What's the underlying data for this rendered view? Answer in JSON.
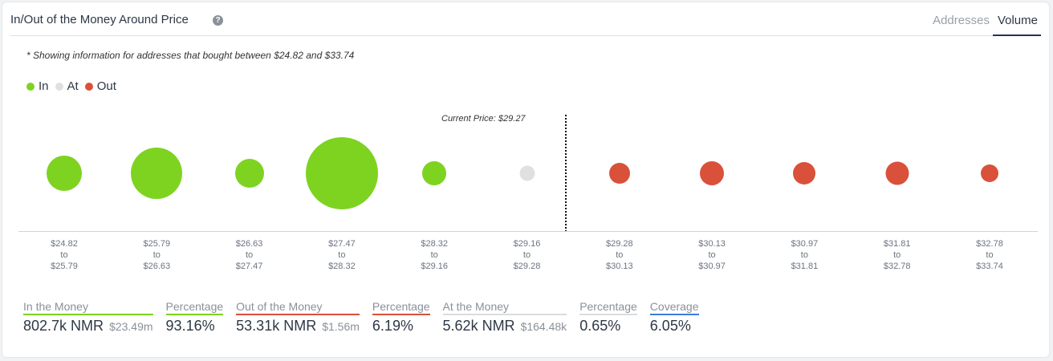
{
  "header": {
    "title": "In/Out of the Money Around Price",
    "help_icon": "question-circle-icon",
    "tabs": [
      {
        "label": "Addresses",
        "active": false
      },
      {
        "label": "Volume",
        "active": true
      }
    ]
  },
  "note": "* Showing information for addresses that bought between $24.82 and $33.74",
  "legend": [
    {
      "label": "In",
      "color": "#7ed321"
    },
    {
      "label": "At",
      "color": "#e0e0e0"
    },
    {
      "label": "Out",
      "color": "#d9513a"
    }
  ],
  "current_price_label": "Current Price: $29.27",
  "colors": {
    "in": "#7ed321",
    "at": "#e0e0e0",
    "out": "#d9513a",
    "coverage": "#3b7ddd",
    "tab_active": "#1f3362"
  },
  "chart_data": {
    "type": "bubble",
    "title": "In/Out of the Money Around Price",
    "current_price": 29.27,
    "categories": [
      {
        "from": "$24.82",
        "to": "$25.79",
        "status": "In",
        "size": 44
      },
      {
        "from": "$25.79",
        "to": "$26.63",
        "status": "In",
        "size": 64
      },
      {
        "from": "$26.63",
        "to": "$27.47",
        "status": "In",
        "size": 36
      },
      {
        "from": "$27.47",
        "to": "$28.32",
        "status": "In",
        "size": 90
      },
      {
        "from": "$28.32",
        "to": "$29.16",
        "status": "In",
        "size": 30
      },
      {
        "from": "$29.16",
        "to": "$29.28",
        "status": "At",
        "size": 19
      },
      {
        "from": "$29.28",
        "to": "$30.13",
        "status": "Out",
        "size": 26
      },
      {
        "from": "$30.13",
        "to": "$30.97",
        "status": "Out",
        "size": 30
      },
      {
        "from": "$30.97",
        "to": "$31.81",
        "status": "Out",
        "size": 28
      },
      {
        "from": "$31.81",
        "to": "$32.78",
        "status": "Out",
        "size": 29
      },
      {
        "from": "$32.78",
        "to": "$33.74",
        "status": "Out",
        "size": 22
      }
    ],
    "tick_connector": "to",
    "legend_position": "top-left",
    "grid": false
  },
  "stats": [
    {
      "label": "In the Money",
      "value": "802.7k NMR",
      "sub": "$23.49m",
      "color": "#7ed321"
    },
    {
      "label": "Percentage",
      "value": "93.16%",
      "sub": "",
      "color": "#7ed321"
    },
    {
      "label": "Out of the Money",
      "value": "53.31k NMR",
      "sub": "$1.56m",
      "color": "#d9513a"
    },
    {
      "label": "Percentage",
      "value": "6.19%",
      "sub": "",
      "color": "#d9513a"
    },
    {
      "label": "At the Money",
      "value": "5.62k NMR",
      "sub": "$164.48k",
      "color": "#dcdcdc"
    },
    {
      "label": "Percentage",
      "value": "0.65%",
      "sub": "",
      "color": "#dcdcdc"
    },
    {
      "label": "Coverage",
      "value": "6.05%",
      "sub": "",
      "color": "#3b7ddd"
    }
  ]
}
